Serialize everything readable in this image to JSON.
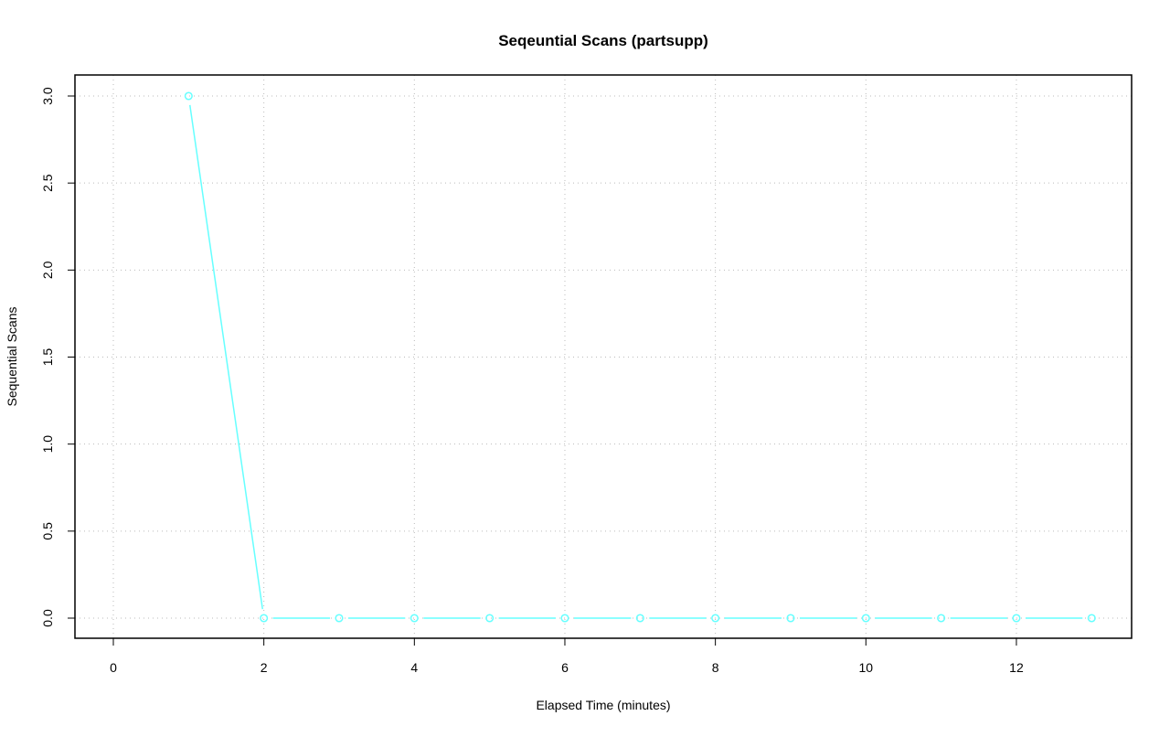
{
  "chart_data": {
    "type": "line",
    "title": "Seqeuntial Scans (partsupp)",
    "xlabel": "Elapsed Time (minutes)",
    "ylabel": "Sequential Scans",
    "xlim": [
      0,
      13
    ],
    "ylim": [
      0,
      3
    ],
    "x_ticks": [
      0,
      2,
      4,
      6,
      8,
      10,
      12
    ],
    "y_ticks": [
      "0.0",
      "0.5",
      "1.0",
      "1.5",
      "2.0",
      "2.5",
      "3.0"
    ],
    "grid": true,
    "color": "#66ffff",
    "markers": "open-circle",
    "x": [
      1,
      2,
      3,
      4,
      5,
      6,
      7,
      8,
      9,
      10,
      11,
      12,
      13
    ],
    "y": [
      3,
      0,
      0,
      0,
      0,
      0,
      0,
      0,
      0,
      0,
      0,
      0,
      0
    ]
  }
}
